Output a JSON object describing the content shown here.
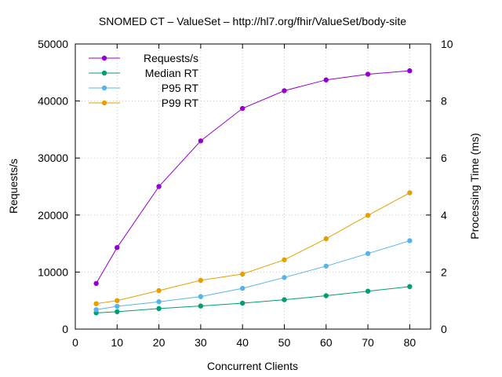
{
  "chart_data": {
    "type": "line",
    "title": "SNOMED CT – ValueSet – http://hl7.org/fhir/ValueSet/body-site",
    "xlabel": "Concurrent Clients",
    "ylabel": "Requests/s",
    "y2label": "Processing Time (ms)",
    "xlim": [
      0,
      85
    ],
    "ylim": [
      0,
      50000
    ],
    "y2lim": [
      0,
      10
    ],
    "xticks": [
      0,
      10,
      20,
      30,
      40,
      50,
      60,
      70,
      80
    ],
    "yticks": [
      0,
      10000,
      20000,
      30000,
      40000,
      50000
    ],
    "y2ticks": [
      0,
      2,
      4,
      6,
      8,
      10
    ],
    "grid": true,
    "legend_position": "top-left",
    "x": [
      5,
      10,
      20,
      30,
      40,
      50,
      60,
      70,
      80
    ],
    "series": [
      {
        "name": "Requests/s",
        "axis": "left",
        "color": "#9400d3",
        "values": [
          8000,
          14300,
          25000,
          33000,
          38700,
          41800,
          43700,
          44700,
          45300
        ]
      },
      {
        "name": "Median RT",
        "axis": "right",
        "color": "#009e73",
        "values": [
          0.57,
          0.61,
          0.72,
          0.81,
          0.91,
          1.03,
          1.17,
          1.33,
          1.49
        ]
      },
      {
        "name": "P95 RT",
        "axis": "right",
        "color": "#56b4e9",
        "values": [
          0.68,
          0.8,
          0.96,
          1.14,
          1.43,
          1.81,
          2.21,
          2.65,
          3.1
        ]
      },
      {
        "name": "P99 RT",
        "axis": "right",
        "color": "#e69f00",
        "values": [
          0.89,
          1.0,
          1.35,
          1.71,
          1.93,
          2.43,
          3.17,
          3.99,
          4.78
        ]
      }
    ]
  }
}
